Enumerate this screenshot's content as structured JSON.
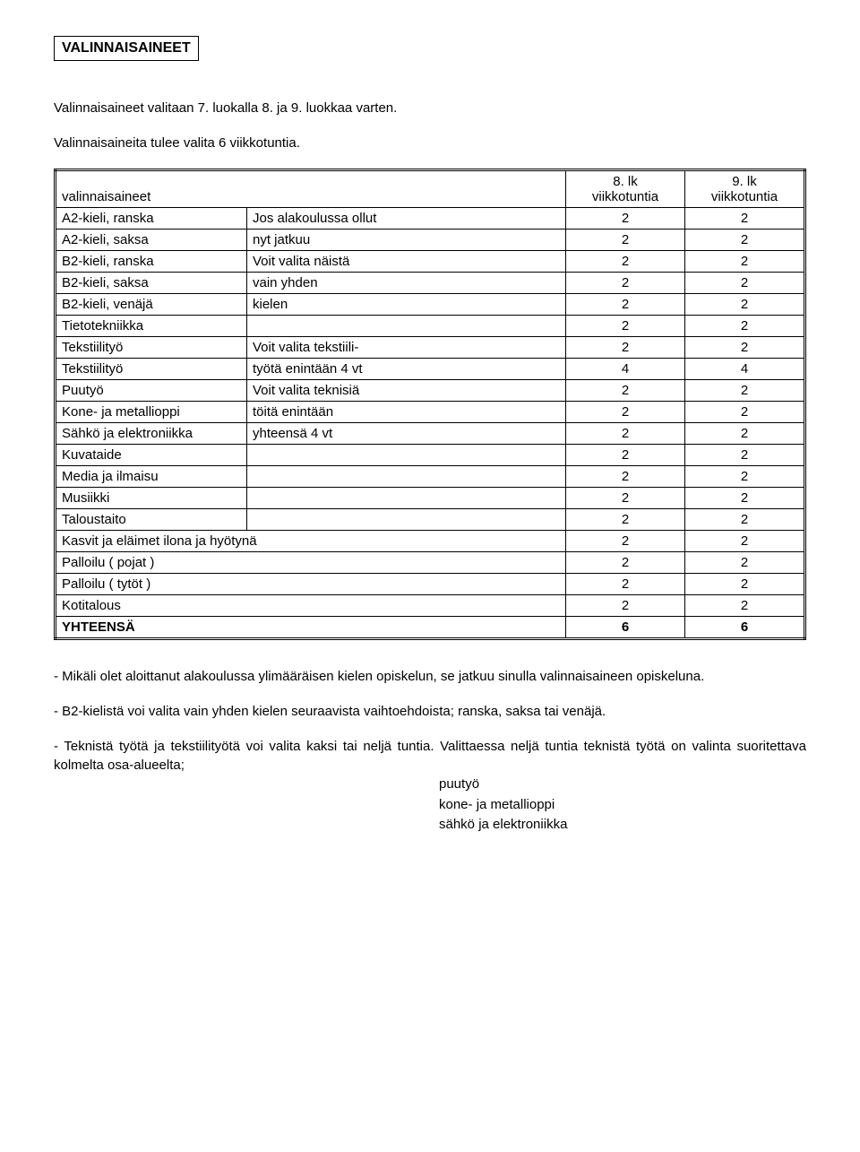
{
  "title": "VALINNAISAINEET",
  "intro1": "Valinnaisaineet valitaan 7. luokalla 8. ja 9. luokkaa varten.",
  "intro2": "Valinnaisaineita tulee valita 6 viikkotuntia.",
  "table": {
    "header_left": "valinnaisaineet",
    "col8_top": "8. lk",
    "col8_bot": "viikkotuntia",
    "col9_top": "9. lk",
    "col9_bot": "viikkotuntia",
    "rows": [
      {
        "c1": "A2-kieli, ranska",
        "c2": "Jos alakoulussa ollut",
        "c3": "2",
        "c4": "2"
      },
      {
        "c1": "A2-kieli, saksa",
        "c2": "nyt jatkuu",
        "c3": "2",
        "c4": "2"
      },
      {
        "c1": "B2-kieli, ranska",
        "c2": "Voit valita näistä",
        "c3": "2",
        "c4": "2"
      },
      {
        "c1": "B2-kieli, saksa",
        "c2": "vain yhden",
        "c3": "2",
        "c4": "2"
      },
      {
        "c1": "B2-kieli, venäjä",
        "c2": "kielen",
        "c3": "2",
        "c4": "2"
      },
      {
        "c1": "Tietotekniikka",
        "c2": "",
        "c3": "2",
        "c4": "2"
      },
      {
        "c1": "Tekstiilityö",
        "c2": "Voit valita tekstiili-",
        "c3": "2",
        "c4": "2"
      },
      {
        "c1": "Tekstiilityö",
        "c2": "työtä enintään 4 vt",
        "c3": "4",
        "c4": "4"
      },
      {
        "c1": "Puutyö",
        "c2": "Voit valita teknisiä",
        "c3": "2",
        "c4": "2"
      },
      {
        "c1": "Kone- ja metallioppi",
        "c2": "töitä enintään",
        "c3": "2",
        "c4": "2"
      },
      {
        "c1": "Sähkö ja elektroniikka",
        "c2": "yhteensä 4 vt",
        "c3": "2",
        "c4": "2"
      },
      {
        "c1": "Kuvataide",
        "c2": "",
        "c3": "2",
        "c4": "2"
      },
      {
        "c1": "Media ja ilmaisu",
        "c2": "",
        "c3": "2",
        "c4": "2"
      },
      {
        "c1": "Musiikki",
        "c2": "",
        "c3": "2",
        "c4": "2"
      },
      {
        "c1": "Taloustaito",
        "c2": "",
        "c3": "2",
        "c4": "2"
      },
      {
        "c1": "Kasvit ja eläimet ilona ja hyötynä",
        "c2": "",
        "merge": true,
        "c3": "2",
        "c4": "2"
      },
      {
        "c1": "Palloilu ( pojat )",
        "c2": "",
        "merge": true,
        "c3": "2",
        "c4": "2"
      },
      {
        "c1": "Palloilu  ( tytöt )",
        "c2": "",
        "merge": true,
        "c3": "2",
        "c4": "2"
      },
      {
        "c1": "Kotitalous",
        "c2": "",
        "merge": true,
        "c3": "2",
        "c4": "2"
      },
      {
        "c1": "YHTEENSÄ",
        "c2": "",
        "merge": true,
        "bold": true,
        "c3": "6",
        "c4": "6"
      }
    ]
  },
  "note1": "- Mikäli olet aloittanut alakoulussa ylimääräisen kielen opiskelun, se jatkuu sinulla valinnaisaineen opiskeluna.",
  "note2": "- B2-kielistä voi valita vain yhden kielen seuraavista vaihtoehdoista; ranska, saksa tai venäjä.",
  "note3a": "- Teknistä työtä ja tekstiilityötä voi valita kaksi tai neljä tuntia. Valittaessa neljä tuntia teknistä työtä on valinta suoritettava kolmelta osa-alueelta;",
  "note3_items": [
    "puutyö",
    "kone- ja metallioppi",
    "sähkö ja elektroniikka"
  ]
}
